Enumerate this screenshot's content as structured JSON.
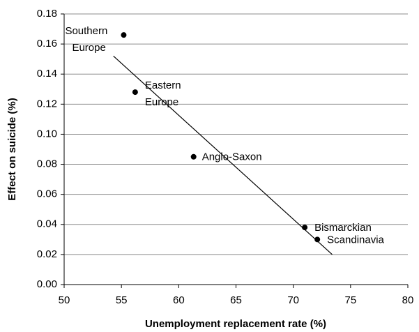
{
  "chart_data": {
    "type": "scatter",
    "x_label": "Unemployment replacement rate (%)",
    "y_label": "Effect on suicide (%)",
    "series": [
      {
        "color": "#000000",
        "x": [
          55.2,
          56.2,
          61.3,
          71.0,
          72.1
        ],
        "values": [
          0.166,
          0.128,
          0.085,
          0.038,
          0.03
        ],
        "labels": [
          [
            "Southern",
            "Europe"
          ],
          [
            "Eastern",
            "Europe"
          ],
          [
            "Anglo-Saxon"
          ],
          [
            "Bismarckian"
          ],
          [
            "Scandinavia"
          ]
        ]
      }
    ],
    "trendline": {
      "x": [
        54.3,
        73.4
      ],
      "values": [
        0.152,
        0.02
      ],
      "color": "#000000"
    },
    "xlim": [
      50,
      80
    ],
    "xticks": [
      50,
      55,
      60,
      65,
      70,
      75,
      80
    ],
    "ylim": [
      0,
      0.18
    ],
    "yticks": [
      {
        "value": 0,
        "label": "0.00"
      },
      {
        "value": 0.02,
        "label": "0.02"
      },
      {
        "value": 0.04,
        "label": "0.04"
      },
      {
        "value": 0.06,
        "label": "0.06"
      },
      {
        "value": 0.08,
        "label": "0.08"
      },
      {
        "value": 0.1,
        "label": "0.10"
      },
      {
        "value": 0.12,
        "label": "0.12"
      },
      {
        "value": 0.14,
        "label": "0.14"
      },
      {
        "value": 0.16,
        "label": "0.16"
      },
      {
        "value": 0.18,
        "label": "0.18"
      }
    ],
    "grid": true
  }
}
